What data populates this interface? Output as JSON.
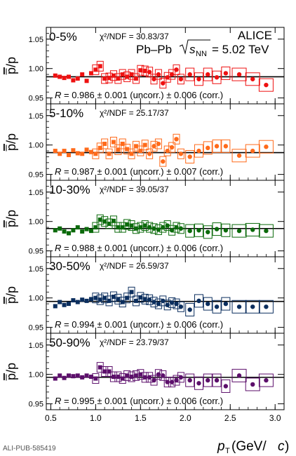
{
  "figure": {
    "collaboration": "ALICE",
    "system": "Pb–Pb",
    "energy_value": "= 5.02 TeV",
    "ylabel_bar": "p",
    "ylabel_rest": "/p",
    "xlabel_main": "p",
    "xlabel_sub": "T",
    "xlabel_unit": " (GeV/",
    "xlabel_c": "c",
    "xlabel_close": ")",
    "footer": "ALI-PUB-585419"
  },
  "chart_data": [
    {
      "type": "scatter",
      "centrality": "0-5%",
      "chi2": "χ²/NDF = 30.83/37",
      "ratio_text": "= 0.986 ± 0.001 (uncorr.) ± 0.006 (corr.)",
      "R": 0.986,
      "color": "#ee1111",
      "marker": "square-then-circle",
      "x": [
        0.55,
        0.6,
        0.65,
        0.7,
        0.75,
        0.8,
        0.85,
        0.9,
        0.95,
        1.0,
        1.05,
        1.1,
        1.15,
        1.2,
        1.25,
        1.3,
        1.35,
        1.4,
        1.45,
        1.5,
        1.55,
        1.6,
        1.65,
        1.7,
        1.75,
        1.8,
        1.85,
        1.9,
        1.95,
        2.05,
        2.15,
        2.25,
        2.35,
        2.45,
        2.6,
        2.75,
        2.9
      ],
      "y": [
        0.988,
        0.986,
        0.984,
        0.986,
        0.98,
        0.983,
        0.99,
        0.979,
        0.992,
        0.998,
        1.004,
        0.983,
        0.984,
        0.988,
        0.983,
        0.99,
        0.986,
        0.99,
        0.983,
        0.997,
        0.996,
        0.994,
        0.982,
        0.99,
        0.975,
        0.985,
        0.99,
        0.998,
        0.982,
        0.99,
        0.982,
        0.99,
        0.985,
        0.992,
        0.99,
        0.982,
        0.972
      ],
      "ylim": [
        0.94,
        1.07
      ],
      "yticks": [
        "0.95",
        "1.00",
        "1.05"
      ]
    },
    {
      "type": "scatter",
      "centrality": "5-10%",
      "chi2": "χ²/NDF = 25.17/37",
      "ratio_text": "= 0.987 ± 0.001 (uncorr.) ± 0.007 (corr.)",
      "R": 0.987,
      "color": "#ff6a1a",
      "marker": "square-then-circle",
      "x": [
        0.55,
        0.6,
        0.65,
        0.7,
        0.75,
        0.8,
        0.85,
        0.9,
        0.95,
        1.0,
        1.05,
        1.1,
        1.15,
        1.2,
        1.25,
        1.3,
        1.35,
        1.4,
        1.45,
        1.5,
        1.55,
        1.6,
        1.65,
        1.7,
        1.75,
        1.8,
        1.85,
        1.9,
        1.95,
        2.05,
        2.15,
        2.25,
        2.35,
        2.45,
        2.6,
        2.75,
        2.9
      ],
      "y": [
        0.99,
        0.985,
        0.99,
        0.983,
        0.991,
        0.986,
        0.985,
        0.992,
        0.988,
        0.985,
        0.995,
        1.002,
        0.985,
        1.005,
        0.992,
        1.002,
        0.993,
        0.985,
        0.998,
        0.99,
        1.0,
        0.985,
        0.998,
        1.002,
        0.972,
        0.99,
        0.996,
        1.01,
        0.985,
        0.98,
        0.99,
        0.995,
        0.998,
        0.998,
        0.982,
        0.99,
        0.997
      ],
      "ylim": [
        0.94,
        1.07
      ],
      "yticks": [
        "0.95",
        "1.00",
        "1.05"
      ]
    },
    {
      "type": "scatter",
      "centrality": "10-30%",
      "chi2": "χ²/NDF = 39.05/37",
      "ratio_text": "= 0.988 ± 0.001 (uncorr.) ± 0.006 (corr.)",
      "R": 0.988,
      "color": "#0b6a0b",
      "marker": "square-then-circle",
      "x": [
        0.55,
        0.6,
        0.65,
        0.7,
        0.75,
        0.8,
        0.85,
        0.9,
        0.95,
        1.0,
        1.05,
        1.1,
        1.15,
        1.2,
        1.25,
        1.3,
        1.35,
        1.4,
        1.45,
        1.5,
        1.55,
        1.6,
        1.65,
        1.7,
        1.75,
        1.8,
        1.85,
        1.9,
        1.95,
        2.05,
        2.15,
        2.25,
        2.35,
        2.45,
        2.6,
        2.75,
        2.9
      ],
      "y": [
        0.985,
        0.988,
        0.983,
        0.98,
        0.985,
        0.99,
        0.983,
        0.987,
        0.984,
        0.99,
        1.003,
        1.0,
        0.996,
        1.001,
        0.99,
        0.99,
        0.995,
        0.993,
        0.988,
        0.99,
        0.993,
        0.99,
        0.988,
        0.986,
        0.99,
        0.993,
        0.985,
        0.99,
        0.988,
        0.984,
        0.985,
        0.982,
        0.987,
        0.985,
        0.984,
        0.986,
        0.984
      ],
      "ylim": [
        0.94,
        1.07
      ],
      "yticks": [
        "0.95",
        "1.00",
        "1.05"
      ]
    },
    {
      "type": "scatter",
      "centrality": "30-50%",
      "chi2": "χ²/NDF = 26.59/37",
      "ratio_text": "= 0.994 ± 0.001 (uncorr.) ± 0.006 (corr.)",
      "R": 0.994,
      "color": "#0b2e5e",
      "marker": "square-then-circle",
      "x": [
        0.55,
        0.6,
        0.65,
        0.7,
        0.75,
        0.8,
        0.85,
        0.9,
        0.95,
        1.0,
        1.05,
        1.1,
        1.15,
        1.2,
        1.25,
        1.3,
        1.35,
        1.4,
        1.45,
        1.5,
        1.55,
        1.6,
        1.65,
        1.7,
        1.75,
        1.8,
        1.85,
        1.9,
        1.95,
        2.05,
        2.15,
        2.25,
        2.35,
        2.45,
        2.6,
        2.75,
        2.9
      ],
      "y": [
        0.986,
        0.993,
        0.988,
        0.99,
        0.996,
        0.993,
        0.997,
        0.995,
        0.998,
        1.0,
        0.997,
        1.0,
        0.995,
        1.002,
        0.998,
        0.993,
        1.0,
        1.01,
        0.995,
        1.001,
        0.998,
        0.997,
        0.993,
        0.99,
        0.995,
        0.988,
        0.992,
        0.99,
        0.985,
        0.98,
        0.995,
        0.99,
        0.985,
        0.99,
        0.985,
        0.985,
        0.985
      ],
      "ylim": [
        0.94,
        1.07
      ],
      "yticks": [
        "0.95",
        "1.00",
        "1.05"
      ]
    },
    {
      "type": "scatter",
      "centrality": "50-90%",
      "chi2": "χ²/NDF = 23.79/37",
      "ratio_text": "= 0.995 ± 0.001 (uncorr.) ± 0.006 (corr.)",
      "R": 0.995,
      "color": "#5c0f6b",
      "marker": "square-then-circle",
      "x": [
        0.55,
        0.6,
        0.65,
        0.7,
        0.75,
        0.8,
        0.85,
        0.9,
        0.95,
        1.0,
        1.05,
        1.1,
        1.15,
        1.2,
        1.25,
        1.3,
        1.35,
        1.4,
        1.45,
        1.5,
        1.55,
        1.6,
        1.65,
        1.7,
        1.75,
        1.8,
        1.85,
        1.9,
        1.95,
        2.05,
        2.15,
        2.25,
        2.35,
        2.45,
        2.6,
        2.75,
        2.9
      ],
      "y": [
        0.993,
        0.998,
        0.994,
        0.998,
        0.997,
        0.998,
        0.995,
        0.998,
        0.996,
        0.993,
        1.012,
        1.005,
        1.005,
        0.996,
        0.996,
        0.993,
        0.998,
        0.996,
        0.998,
        1.0,
        0.995,
        0.995,
        0.99,
        1.0,
        0.998,
        0.987,
        0.987,
        0.99,
        0.995,
        0.99,
        0.985,
        0.99,
        0.99,
        0.98,
        0.998,
        0.983,
        0.99
      ],
      "ylim": [
        0.94,
        1.07
      ],
      "yticks": [
        "0.95",
        "1.00",
        "1.05"
      ]
    }
  ],
  "x_axis": {
    "xlim": [
      0.45,
      3.1
    ],
    "ticks": [
      "0.5",
      "1.0",
      "1.5",
      "2.0",
      "2.5",
      "3.0"
    ]
  }
}
